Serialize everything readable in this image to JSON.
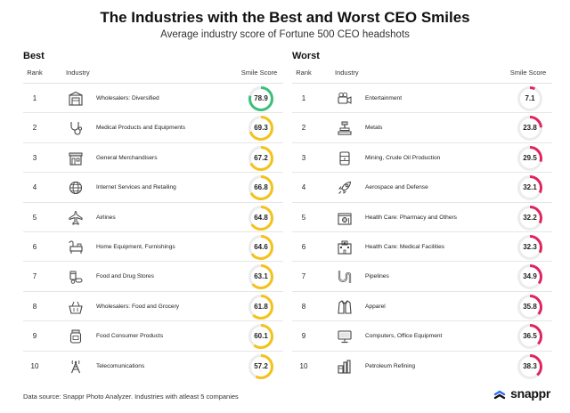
{
  "chart_data": {
    "type": "table",
    "title": "The Industries with the Best and Worst CEO Smiles",
    "subtitle": "Average industry score of Fortune 500 CEO headshots",
    "columns": [
      "Rank",
      "Industry",
      "Smile Score"
    ],
    "score_max": 100,
    "tables": [
      {
        "name": "Best",
        "color": "#f5c21a",
        "top_color": "#3cbf7a",
        "rows": [
          {
            "rank": "1",
            "industry": "Wholesalers: Diversified",
            "score": "78.9",
            "value": 78.9,
            "icon": "warehouse-icon"
          },
          {
            "rank": "2",
            "industry": "Medical Products and Equipments",
            "score": "69.3",
            "value": 69.3,
            "icon": "stethoscope-icon"
          },
          {
            "rank": "3",
            "industry": "General Merchandisers",
            "score": "67.2",
            "value": 67.2,
            "icon": "storefront-icon"
          },
          {
            "rank": "4",
            "industry": "Internet Services and Retailing",
            "score": "66.8",
            "value": 66.8,
            "icon": "globe-icon"
          },
          {
            "rank": "5",
            "industry": "Airlines",
            "score": "64.8",
            "value": 64.8,
            "icon": "airplane-icon"
          },
          {
            "rank": "6",
            "industry": "Home Equipment, Furnishings",
            "score": "64.6",
            "value": 64.6,
            "icon": "furniture-icon"
          },
          {
            "rank": "7",
            "industry": "Food and Drug Stores",
            "score": "63.1",
            "value": 63.1,
            "icon": "pills-icon"
          },
          {
            "rank": "8",
            "industry": "Wholesalers: Food and Grocery",
            "score": "61.8",
            "value": 61.8,
            "icon": "grocery-basket-icon"
          },
          {
            "rank": "9",
            "industry": "Food Consumer Products",
            "score": "60.1",
            "value": 60.1,
            "icon": "food-jar-icon"
          },
          {
            "rank": "10",
            "industry": "Telecomunications",
            "score": "57.2",
            "value": 57.2,
            "icon": "antenna-tower-icon"
          }
        ]
      },
      {
        "name": "Worst",
        "color": "#e0245e",
        "rows": [
          {
            "rank": "1",
            "industry": "Entertainment",
            "score": "7.1",
            "value": 7.1,
            "icon": "film-camera-icon"
          },
          {
            "rank": "2",
            "industry": "Metals",
            "score": "23.8",
            "value": 23.8,
            "icon": "metal-press-icon"
          },
          {
            "rank": "3",
            "industry": "Mining, Crude Oil Production",
            "score": "29.5",
            "value": 29.5,
            "icon": "oil-barrel-icon"
          },
          {
            "rank": "4",
            "industry": "Aerospace and Defense",
            "score": "32.1",
            "value": 32.1,
            "icon": "rocket-icon"
          },
          {
            "rank": "5",
            "industry": "Health Care: Pharmacy and Others",
            "score": "32.2",
            "value": 32.2,
            "icon": "pharmacy-icon"
          },
          {
            "rank": "6",
            "industry": "Health Care: Medical Facilities",
            "score": "32.3",
            "value": 32.3,
            "icon": "hospital-icon"
          },
          {
            "rank": "7",
            "industry": "Pipelines",
            "score": "34.9",
            "value": 34.9,
            "icon": "pipeline-icon"
          },
          {
            "rank": "8",
            "industry": "Apparel",
            "score": "35.8",
            "value": 35.8,
            "icon": "jacket-icon"
          },
          {
            "rank": "9",
            "industry": "Computers, Office Equipment",
            "score": "36.5",
            "value": 36.5,
            "icon": "computer-icon"
          },
          {
            "rank": "10",
            "industry": "Petroleum Refining",
            "score": "38.3",
            "value": 38.3,
            "icon": "refinery-icon"
          }
        ]
      }
    ]
  },
  "footer": "Data source: Snappr Photo Analyzer. Industries with atleast 5 companies",
  "brand": {
    "name": "snappr",
    "accent": "#2b6bff"
  }
}
